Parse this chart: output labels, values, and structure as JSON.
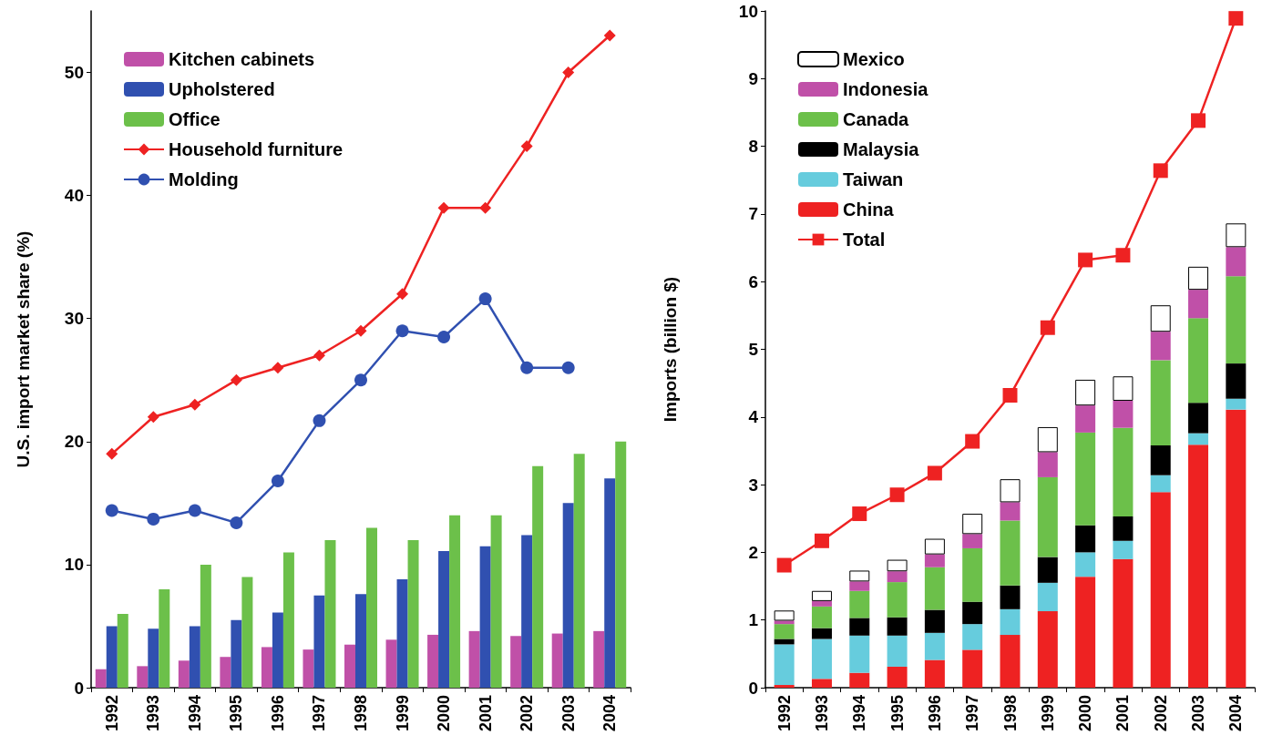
{
  "chart_data": [
    {
      "type": "bar",
      "ylabel": "U.S. import market share (%)",
      "categories": [
        "1992",
        "1993",
        "1994",
        "1995",
        "1996",
        "1997",
        "1998",
        "1999",
        "2000",
        "2001",
        "2002",
        "2003",
        "2004"
      ],
      "ylim": [
        0,
        55
      ],
      "yticks": [
        0,
        10,
        20,
        30,
        40,
        50
      ],
      "grid": false,
      "legend": "top left",
      "series": [
        {
          "name": "Kitchen cabinets",
          "color": "#c050a8",
          "values": [
            1.5,
            1.75,
            2.2,
            2.5,
            3.3,
            3.1,
            3.5,
            3.9,
            4.3,
            4.6,
            4.2,
            4.4,
            4.6
          ]
        },
        {
          "name": "Upholstered",
          "color": "#3050b0",
          "values": [
            5.0,
            4.8,
            5.0,
            5.5,
            6.1,
            7.5,
            7.6,
            8.8,
            11.1,
            11.5,
            12.4,
            15.0,
            17.0
          ]
        },
        {
          "name": "Office",
          "color": "#6cc04a",
          "values": [
            6,
            8,
            10,
            9,
            11,
            12,
            13,
            12,
            14,
            14,
            18,
            19,
            20
          ]
        },
        {
          "name": "Household furniture",
          "type": "line",
          "color": "#ee2222",
          "marker": "diamond",
          "values": [
            19,
            22,
            23,
            25,
            26,
            27,
            29,
            32,
            39,
            39,
            44,
            50,
            53
          ]
        },
        {
          "name": "Molding",
          "type": "line",
          "color": "#3050b0",
          "marker": "circle",
          "values": [
            14.4,
            13.7,
            14.4,
            13.4,
            16.8,
            21.7,
            25.0,
            29.0,
            28.5,
            31.6,
            26.0,
            26.0,
            null
          ]
        }
      ]
    },
    {
      "type": "bar",
      "ylabel": "Imports (billion $)",
      "categories": [
        "1992",
        "1993",
        "1994",
        "1995",
        "1996",
        "1997",
        "1998",
        "1999",
        "2000",
        "2001",
        "2002",
        "2003",
        "2004"
      ],
      "ylim": [
        0,
        10
      ],
      "yticks": [
        0,
        1,
        2,
        3,
        4,
        5,
        6,
        7,
        8,
        9,
        10
      ],
      "grid": false,
      "legend": "top left",
      "stacked": true,
      "series": [
        {
          "name": "China",
          "color": "#ee2222",
          "values": [
            0.04,
            0.13,
            0.22,
            0.31,
            0.41,
            0.56,
            0.78,
            1.13,
            1.64,
            1.9,
            2.89,
            3.59,
            4.11
          ]
        },
        {
          "name": "Taiwan",
          "color": "#66ccdd",
          "values": [
            0.6,
            0.59,
            0.55,
            0.46,
            0.4,
            0.38,
            0.38,
            0.42,
            0.36,
            0.27,
            0.25,
            0.17,
            0.16
          ]
        },
        {
          "name": "Malaysia",
          "color": "#000000",
          "values": [
            0.08,
            0.16,
            0.26,
            0.27,
            0.34,
            0.33,
            0.35,
            0.38,
            0.4,
            0.36,
            0.44,
            0.45,
            0.52
          ]
        },
        {
          "name": "Canada",
          "color": "#6cc04a",
          "values": [
            0.22,
            0.32,
            0.4,
            0.52,
            0.63,
            0.79,
            0.96,
            1.18,
            1.37,
            1.31,
            1.26,
            1.25,
            1.29
          ]
        },
        {
          "name": "Indonesia",
          "color": "#c050a8",
          "values": [
            0.05,
            0.08,
            0.14,
            0.16,
            0.19,
            0.21,
            0.27,
            0.37,
            0.4,
            0.4,
            0.42,
            0.42,
            0.43
          ]
        },
        {
          "name": "Mexico",
          "color": "#ffffff",
          "values": [
            0.15,
            0.15,
            0.16,
            0.17,
            0.23,
            0.3,
            0.34,
            0.37,
            0.38,
            0.36,
            0.39,
            0.34,
            0.35
          ]
        },
        {
          "name": "Total",
          "type": "line",
          "color": "#ee2222",
          "marker": "square",
          "values": [
            1.81,
            2.17,
            2.57,
            2.85,
            3.17,
            3.64,
            4.32,
            5.32,
            6.32,
            6.39,
            7.64,
            8.38,
            9.89
          ]
        }
      ]
    }
  ]
}
